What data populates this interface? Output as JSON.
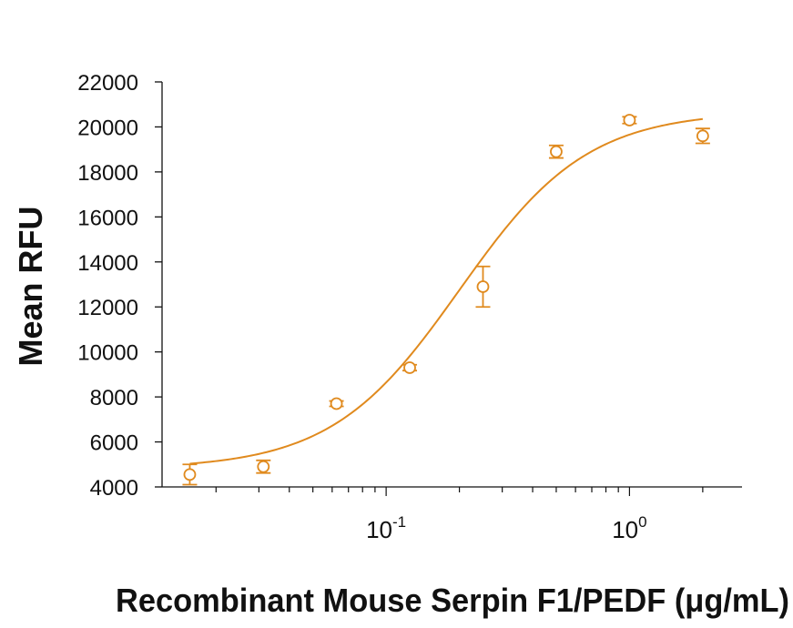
{
  "chart_data": {
    "type": "scatter",
    "title": "",
    "xlabel": "Recombinant Mouse Serpin F1/PEDF (μg/mL)",
    "ylabel": "Mean RFU",
    "x_scale": "log",
    "xlim": [
      0.012,
      2.9
    ],
    "ylim": [
      4000,
      22000
    ],
    "yticks": [
      4000,
      6000,
      8000,
      10000,
      12000,
      14000,
      16000,
      18000,
      20000,
      22000
    ],
    "xticks": [
      {
        "value": 0.1,
        "base": "10",
        "exp": "-1"
      },
      {
        "value": 1,
        "base": "10",
        "exp": "0"
      }
    ],
    "grid": false,
    "legend": "none",
    "color": "#E08A1E",
    "points": [
      {
        "x": 0.0156,
        "y": 4550,
        "err": 450
      },
      {
        "x": 0.0313,
        "y": 4900,
        "err": 280
      },
      {
        "x": 0.0625,
        "y": 7700,
        "err": 120
      },
      {
        "x": 0.125,
        "y": 9300,
        "err": 130
      },
      {
        "x": 0.25,
        "y": 12900,
        "err": 900
      },
      {
        "x": 0.5,
        "y": 18900,
        "err": 280
      },
      {
        "x": 1.0,
        "y": 20300,
        "err": 150
      },
      {
        "x": 2.0,
        "y": 19600,
        "err": 330
      }
    ],
    "fit": {
      "model": "4PL",
      "bottom": 4800,
      "top": 20700,
      "ec50": 0.2,
      "hill": 1.65,
      "x_range": [
        0.0156,
        2.0
      ]
    }
  }
}
